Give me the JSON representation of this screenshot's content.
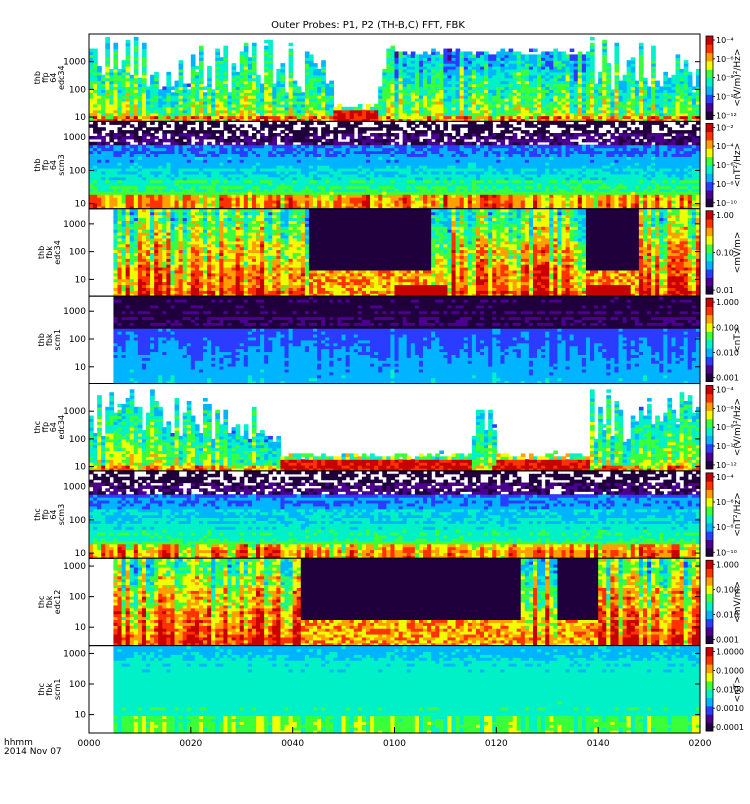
{
  "chart_data": {
    "type": "heatmap",
    "title": "Outer Probes: P1, P2 (TH-B,C) FFT, FBK",
    "x_axis": {
      "corner_label": [
        "hhmm",
        "2014 Nov 07"
      ],
      "ticks": [
        "0000",
        "0020",
        "0040",
        "0100",
        "0120",
        "0140",
        "0200"
      ],
      "range_minutes": [
        0,
        120
      ]
    },
    "panels": [
      {
        "id": "thb-ffp-edc34",
        "label_lines": [
          "thb",
          "ffp",
          "64",
          "edc34"
        ],
        "y_scale": "log",
        "ylim": [
          7,
          10000
        ],
        "y_ticks": [
          "10",
          "100",
          "1000"
        ],
        "colorbar": {
          "unit": "<(V/m)²/Hz>",
          "ticks": [
            "10⁻¹²",
            "10⁻¹⁰",
            "10⁻⁸",
            "10⁻⁶",
            "10⁻⁴"
          ]
        },
        "pattern": "ffp_e",
        "quiet": [
          [
            48,
            57
          ]
        ],
        "active": [
          [
            60,
            98
          ]
        ],
        "seed": 11
      },
      {
        "id": "thb-ffp-scm3",
        "label_lines": [
          "thb",
          "ffp",
          "64",
          "scm3"
        ],
        "y_scale": "log",
        "ylim": [
          7,
          3000
        ],
        "y_ticks": [
          "10",
          "100",
          "1000"
        ],
        "colorbar": {
          "unit": "<nT²/Hz>",
          "ticks": [
            "10⁻¹⁰",
            "10⁻⁸",
            "10⁻⁶",
            "10⁻⁴",
            "10⁻²"
          ]
        },
        "pattern": "ffp_b",
        "quiet": [],
        "active": [],
        "seed": 23
      },
      {
        "id": "thb-fbk-edc34",
        "label_lines": [
          "thb",
          "fbk",
          "edc34"
        ],
        "y_scale": "log",
        "ylim": [
          2.5,
          3500
        ],
        "y_ticks": [
          "10",
          "100",
          "1000"
        ],
        "colorbar": {
          "unit": "<mV/m>",
          "ticks": [
            "0.01",
            "0.10",
            "1.00"
          ]
        },
        "pattern": "fbk_e",
        "quiet": [
          [
            43,
            67
          ],
          [
            98,
            108
          ]
        ],
        "active": [
          [
            60,
            70
          ],
          [
            98,
            106
          ]
        ],
        "seed": 37
      },
      {
        "id": "thb-fbk-scm1",
        "label_lines": [
          "thb",
          "fbk",
          "scm1"
        ],
        "y_scale": "log",
        "ylim": [
          2.5,
          3500
        ],
        "y_ticks": [
          "10",
          "100",
          "1000"
        ],
        "colorbar": {
          "unit": "<nT>",
          "ticks": [
            "0.001",
            "0.010",
            "0.100",
            "1.000"
          ]
        },
        "pattern": "fbk_b",
        "quiet": [],
        "active": [],
        "seed": 41
      },
      {
        "id": "thc-ffp-edc34",
        "label_lines": [
          "thc",
          "ffp",
          "64",
          "edc34"
        ],
        "y_scale": "log",
        "ylim": [
          7,
          10000
        ],
        "y_ticks": [
          "10",
          "100",
          "1000"
        ],
        "colorbar": {
          "unit": "<(V/m)²/Hz>",
          "ticks": [
            "10⁻¹²",
            "10⁻¹⁰",
            "10⁻⁸",
            "10⁻⁶",
            "10⁻⁴"
          ]
        },
        "pattern": "ffp_e",
        "quiet": [
          [
            38,
            75
          ],
          [
            80,
            98
          ]
        ],
        "active": [],
        "seed": 53
      },
      {
        "id": "thc-ffp-scm3",
        "label_lines": [
          "thc",
          "ffp",
          "64",
          "scm3"
        ],
        "y_scale": "log",
        "ylim": [
          7,
          3000
        ],
        "y_ticks": [
          "10",
          "100",
          "1000"
        ],
        "colorbar": {
          "unit": "<nT²/Hz>",
          "ticks": [
            "10⁻¹⁰",
            "10⁻⁸",
            "10⁻⁶",
            "10⁻⁴"
          ]
        },
        "pattern": "ffp_b",
        "quiet": [],
        "active": [],
        "seed": 67
      },
      {
        "id": "thc-fbk-edc12",
        "label_lines": [
          "thc",
          "fbk",
          "edc12"
        ],
        "y_scale": "log",
        "ylim": [
          2.5,
          1800
        ],
        "y_ticks": [
          "10",
          "100",
          "1000"
        ],
        "colorbar": {
          "unit": "<mV/m>",
          "ticks": [
            "0.001",
            "0.010",
            "0.100",
            "1.000"
          ]
        },
        "pattern": "fbk_e",
        "quiet": [
          [
            42,
            85
          ],
          [
            92,
            100
          ]
        ],
        "active": [],
        "seed": 79
      },
      {
        "id": "thc-fbk-scm1",
        "label_lines": [
          "thc",
          "fbk",
          "scm1"
        ],
        "y_scale": "log",
        "ylim": [
          2.5,
          1800
        ],
        "y_ticks": [
          "10",
          "100",
          "1000"
        ],
        "colorbar": {
          "unit": "<nT>",
          "ticks": [
            "0.0001",
            "0.0010",
            "0.0100",
            "0.1000",
            "1.0000"
          ]
        },
        "pattern": "fbk_b2",
        "quiet": [],
        "active": [],
        "seed": 97
      }
    ],
    "colormap": [
      "#20003c",
      "#4b0090",
      "#2a3cff",
      "#00b4ff",
      "#00f0c8",
      "#3cff3c",
      "#f0ff00",
      "#ffa000",
      "#ff3200",
      "#c80000"
    ],
    "grid": false,
    "legend": "colorbars-right"
  }
}
